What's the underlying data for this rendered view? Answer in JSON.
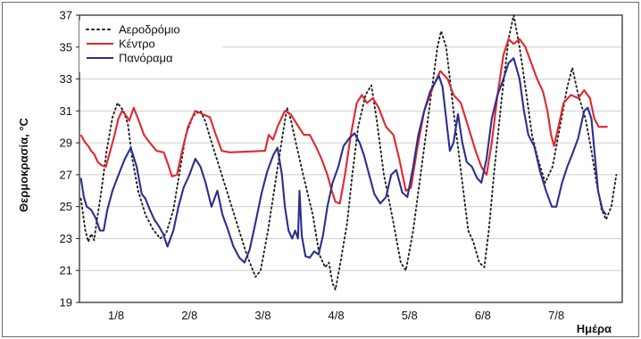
{
  "chart_data": {
    "type": "line",
    "xlabel": "Ημέρα",
    "ylabel": "Θερμοκρασία, °C",
    "ylim": [
      19,
      37
    ],
    "yticks": [
      19,
      21,
      23,
      25,
      27,
      29,
      31,
      33,
      35,
      37
    ],
    "xlim": [
      0.5,
      7.9
    ],
    "xticks": [
      {
        "x": 1,
        "label": "1/8"
      },
      {
        "x": 2,
        "label": "2/8"
      },
      {
        "x": 3,
        "label": "3/8"
      },
      {
        "x": 4,
        "label": "4/8"
      },
      {
        "x": 5,
        "label": "5/8"
      },
      {
        "x": 6,
        "label": "6/8"
      },
      {
        "x": 7,
        "label": "7/8"
      }
    ],
    "grid": "horizontal",
    "legend_position": "top-left",
    "series": [
      {
        "name": "Αεροδρόμιο",
        "color": "#222222",
        "style": "dotted",
        "points": [
          [
            0.52,
            25.5
          ],
          [
            0.58,
            23.5
          ],
          [
            0.62,
            22.8
          ],
          [
            0.66,
            23.3
          ],
          [
            0.7,
            22.9
          ],
          [
            0.75,
            24.5
          ],
          [
            0.8,
            26.0
          ],
          [
            0.87,
            28.5
          ],
          [
            0.95,
            30.6
          ],
          [
            1.02,
            31.5
          ],
          [
            1.1,
            31.0
          ],
          [
            1.16,
            30.2
          ],
          [
            1.22,
            28.0
          ],
          [
            1.3,
            26.0
          ],
          [
            1.4,
            24.5
          ],
          [
            1.5,
            23.6
          ],
          [
            1.6,
            23.0
          ],
          [
            1.68,
            23.3
          ],
          [
            1.78,
            24.8
          ],
          [
            1.86,
            27.0
          ],
          [
            1.95,
            29.5
          ],
          [
            2.05,
            30.7
          ],
          [
            2.15,
            31.0
          ],
          [
            2.22,
            30.3
          ],
          [
            2.27,
            29.5
          ],
          [
            2.78,
            22.0
          ],
          [
            2.9,
            20.6
          ],
          [
            2.97,
            21.0
          ],
          [
            3.07,
            23.5
          ],
          [
            3.17,
            26.5
          ],
          [
            3.27,
            29.5
          ],
          [
            3.33,
            31.2
          ],
          [
            3.38,
            30.5
          ],
          [
            3.45,
            29.0
          ],
          [
            3.55,
            27.0
          ],
          [
            3.68,
            24.5
          ],
          [
            3.77,
            22.0
          ],
          [
            3.85,
            21.2
          ],
          [
            3.9,
            21.5
          ],
          [
            3.95,
            20.2
          ],
          [
            3.99,
            19.8
          ],
          [
            4.05,
            21.3
          ],
          [
            4.15,
            24.0
          ],
          [
            4.22,
            27.0
          ],
          [
            4.3,
            30.0
          ],
          [
            4.4,
            32.0
          ],
          [
            4.48,
            32.6
          ],
          [
            4.55,
            30.5
          ],
          [
            4.65,
            27.0
          ],
          [
            4.78,
            24.0
          ],
          [
            4.88,
            21.5
          ],
          [
            4.95,
            21.0
          ],
          [
            5.05,
            23.5
          ],
          [
            5.15,
            27.0
          ],
          [
            5.28,
            31.5
          ],
          [
            5.38,
            35.0
          ],
          [
            5.43,
            36.0
          ],
          [
            5.5,
            35.0
          ],
          [
            5.6,
            31.0
          ],
          [
            5.72,
            26.5
          ],
          [
            5.8,
            23.5
          ],
          [
            5.87,
            22.8
          ],
          [
            5.95,
            21.5
          ],
          [
            6.02,
            21.2
          ],
          [
            6.08,
            23.5
          ],
          [
            6.15,
            27.0
          ],
          [
            6.25,
            31.5
          ],
          [
            6.35,
            35.5
          ],
          [
            6.42,
            37.0
          ],
          [
            6.5,
            35.0
          ],
          [
            6.58,
            32.5
          ],
          [
            6.67,
            29.5
          ],
          [
            6.75,
            28.0
          ],
          [
            6.85,
            26.5
          ],
          [
            6.95,
            27.5
          ],
          [
            7.05,
            30.0
          ],
          [
            7.15,
            32.5
          ],
          [
            7.22,
            33.7
          ],
          [
            7.3,
            32.0
          ],
          [
            7.4,
            30.5
          ],
          [
            7.48,
            28.5
          ],
          [
            7.55,
            26.5
          ],
          [
            7.62,
            24.8
          ],
          [
            7.68,
            24.2
          ],
          [
            7.75,
            25.0
          ],
          [
            7.82,
            27.0
          ]
        ]
      },
      {
        "name": "Κέντρο",
        "color": "#e0282c",
        "style": "solid",
        "points": [
          [
            0.52,
            29.5
          ],
          [
            0.58,
            29.0
          ],
          [
            0.62,
            28.8
          ],
          [
            0.66,
            28.5
          ],
          [
            0.7,
            28.3
          ],
          [
            0.75,
            27.8
          ],
          [
            0.8,
            27.6
          ],
          [
            0.86,
            27.5
          ],
          [
            0.92,
            28.5
          ],
          [
            0.98,
            29.5
          ],
          [
            1.03,
            30.5
          ],
          [
            1.08,
            31.0
          ],
          [
            1.12,
            30.8
          ],
          [
            1.18,
            30.4
          ],
          [
            1.24,
            31.2
          ],
          [
            1.3,
            30.5
          ],
          [
            1.38,
            29.5
          ],
          [
            1.46,
            29.0
          ],
          [
            1.55,
            28.5
          ],
          [
            1.65,
            28.4
          ],
          [
            1.72,
            27.5
          ],
          [
            1.76,
            26.9
          ],
          [
            1.83,
            27.0
          ],
          [
            1.9,
            28.5
          ],
          [
            1.98,
            30.0
          ],
          [
            2.08,
            31.0
          ],
          [
            2.18,
            30.8
          ],
          [
            2.28,
            30.6
          ],
          [
            2.36,
            29.5
          ],
          [
            2.44,
            28.5
          ],
          [
            2.55,
            28.4
          ],
          [
            3.03,
            28.5
          ],
          [
            3.08,
            29.5
          ],
          [
            3.14,
            29.2
          ],
          [
            3.2,
            30.0
          ],
          [
            3.3,
            31.0
          ],
          [
            3.38,
            30.8
          ],
          [
            3.46,
            30.2
          ],
          [
            3.56,
            29.5
          ],
          [
            3.64,
            29.5
          ],
          [
            3.72,
            28.8
          ],
          [
            3.8,
            28.0
          ],
          [
            3.88,
            27.0
          ],
          [
            3.94,
            26.0
          ],
          [
            3.99,
            25.3
          ],
          [
            4.05,
            25.2
          ],
          [
            4.12,
            27.0
          ],
          [
            4.2,
            29.5
          ],
          [
            4.28,
            31.5
          ],
          [
            4.35,
            32.0
          ],
          [
            4.42,
            31.5
          ],
          [
            4.5,
            31.8
          ],
          [
            4.58,
            31.2
          ],
          [
            4.68,
            30.0
          ],
          [
            4.78,
            29.5
          ],
          [
            4.86,
            28.0
          ],
          [
            4.95,
            26.0
          ],
          [
            5.02,
            26.2
          ],
          [
            5.1,
            28.5
          ],
          [
            5.2,
            31.0
          ],
          [
            5.32,
            32.5
          ],
          [
            5.42,
            33.5
          ],
          [
            5.52,
            33.0
          ],
          [
            5.6,
            32.0
          ],
          [
            5.7,
            31.5
          ],
          [
            5.8,
            30.0
          ],
          [
            5.9,
            28.5
          ],
          [
            5.98,
            27.5
          ],
          [
            6.05,
            27.0
          ],
          [
            6.12,
            29.0
          ],
          [
            6.2,
            32.0
          ],
          [
            6.28,
            34.5
          ],
          [
            6.35,
            35.5
          ],
          [
            6.42,
            35.2
          ],
          [
            6.5,
            35.5
          ],
          [
            6.58,
            35.0
          ],
          [
            6.66,
            34.0
          ],
          [
            6.74,
            33.0
          ],
          [
            6.82,
            32.2
          ],
          [
            6.88,
            31.0
          ],
          [
            6.93,
            29.5
          ],
          [
            6.97,
            28.8
          ],
          [
            7.03,
            30.0
          ],
          [
            7.1,
            31.5
          ],
          [
            7.2,
            32.0
          ],
          [
            7.3,
            31.8
          ],
          [
            7.38,
            32.3
          ],
          [
            7.46,
            31.8
          ],
          [
            7.52,
            30.5
          ],
          [
            7.58,
            30.0
          ],
          [
            7.7,
            30.0
          ]
        ]
      },
      {
        "name": "Πανόραμα",
        "color": "#2b2f8f",
        "style": "solid",
        "points": [
          [
            0.52,
            26.8
          ],
          [
            0.56,
            25.6
          ],
          [
            0.6,
            25.0
          ],
          [
            0.66,
            24.8
          ],
          [
            0.72,
            24.3
          ],
          [
            0.78,
            23.5
          ],
          [
            0.83,
            23.5
          ],
          [
            0.88,
            24.8
          ],
          [
            0.95,
            26.0
          ],
          [
            1.0,
            26.6
          ],
          [
            1.05,
            27.2
          ],
          [
            1.12,
            28.0
          ],
          [
            1.2,
            28.7
          ],
          [
            1.28,
            27.5
          ],
          [
            1.35,
            25.8
          ],
          [
            1.4,
            25.5
          ],
          [
            1.46,
            24.8
          ],
          [
            1.52,
            24.2
          ],
          [
            1.58,
            23.8
          ],
          [
            1.64,
            23.3
          ],
          [
            1.7,
            22.5
          ],
          [
            1.78,
            23.5
          ],
          [
            1.85,
            25.0
          ],
          [
            1.92,
            26.2
          ],
          [
            2.0,
            27.0
          ],
          [
            2.08,
            28.0
          ],
          [
            2.15,
            27.5
          ],
          [
            2.22,
            26.5
          ],
          [
            2.3,
            25.0
          ],
          [
            2.38,
            26.0
          ],
          [
            2.45,
            24.5
          ],
          [
            2.52,
            23.6
          ],
          [
            2.6,
            22.5
          ],
          [
            2.68,
            21.8
          ],
          [
            2.75,
            21.5
          ],
          [
            2.82,
            22.3
          ],
          [
            2.9,
            24.0
          ],
          [
            2.98,
            25.8
          ],
          [
            3.06,
            27.2
          ],
          [
            3.14,
            28.2
          ],
          [
            3.2,
            28.7
          ],
          [
            3.26,
            27.0
          ],
          [
            3.3,
            25.0
          ],
          [
            3.35,
            23.5
          ],
          [
            3.4,
            23.0
          ],
          [
            3.44,
            23.5
          ],
          [
            3.48,
            23.0
          ],
          [
            3.5,
            26.0
          ],
          [
            3.53,
            23.2
          ],
          [
            3.58,
            21.9
          ],
          [
            3.64,
            21.8
          ],
          [
            3.7,
            22.2
          ],
          [
            3.76,
            22.0
          ],
          [
            3.82,
            23.2
          ],
          [
            3.88,
            25.0
          ],
          [
            3.95,
            26.5
          ],
          [
            4.03,
            27.5
          ],
          [
            4.1,
            28.8
          ],
          [
            4.18,
            29.3
          ],
          [
            4.25,
            29.6
          ],
          [
            4.32,
            29.0
          ],
          [
            4.38,
            28.2
          ],
          [
            4.45,
            27.0
          ],
          [
            4.52,
            25.8
          ],
          [
            4.6,
            25.2
          ],
          [
            4.68,
            25.6
          ],
          [
            4.75,
            27.0
          ],
          [
            4.82,
            27.3
          ],
          [
            4.9,
            25.9
          ],
          [
            4.97,
            25.6
          ],
          [
            5.05,
            27.5
          ],
          [
            5.12,
            29.5
          ],
          [
            5.2,
            31.0
          ],
          [
            5.28,
            32.2
          ],
          [
            5.35,
            32.8
          ],
          [
            5.4,
            33.2
          ],
          [
            5.45,
            32.5
          ],
          [
            5.5,
            30.5
          ],
          [
            5.55,
            28.5
          ],
          [
            5.6,
            29.0
          ],
          [
            5.66,
            30.8
          ],
          [
            5.72,
            29.0
          ],
          [
            5.78,
            27.8
          ],
          [
            5.85,
            27.5
          ],
          [
            5.92,
            26.8
          ],
          [
            5.98,
            26.5
          ],
          [
            6.05,
            28.0
          ],
          [
            6.12,
            30.5
          ],
          [
            6.2,
            32.0
          ],
          [
            6.28,
            33.0
          ],
          [
            6.35,
            34.0
          ],
          [
            6.42,
            34.3
          ],
          [
            6.5,
            33.0
          ],
          [
            6.56,
            31.0
          ],
          [
            6.62,
            29.5
          ],
          [
            6.7,
            28.8
          ],
          [
            6.78,
            27.2
          ],
          [
            6.86,
            26.0
          ],
          [
            6.94,
            25.0
          ],
          [
            7.0,
            25.0
          ],
          [
            7.08,
            26.5
          ],
          [
            7.15,
            27.5
          ],
          [
            7.22,
            28.3
          ],
          [
            7.3,
            29.3
          ],
          [
            7.38,
            31.0
          ],
          [
            7.43,
            31.2
          ],
          [
            7.48,
            30.5
          ],
          [
            7.52,
            28.5
          ],
          [
            7.57,
            26.0
          ],
          [
            7.63,
            24.8
          ],
          [
            7.68,
            24.5
          ]
        ]
      }
    ]
  }
}
